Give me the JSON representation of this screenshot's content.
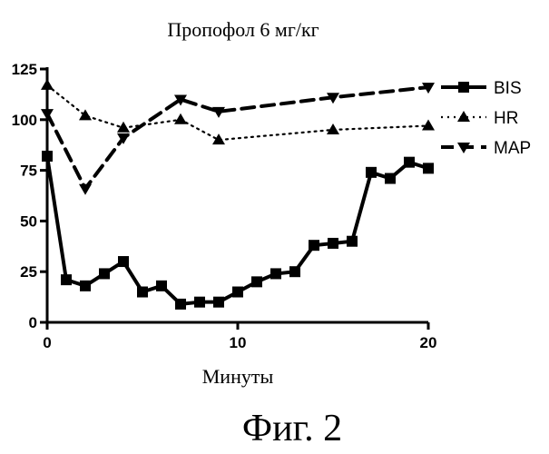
{
  "figure": {
    "caption": "Фиг. 2"
  },
  "chart_data": {
    "type": "line",
    "title": "Пропофол 6 мг/кг",
    "xlabel": "Минуты",
    "ylabel": "",
    "xlim": [
      0,
      20
    ],
    "ylim": [
      0,
      125
    ],
    "xticks": [
      0,
      10,
      20
    ],
    "yticks": [
      0,
      25,
      50,
      75,
      100,
      125
    ],
    "legend_position": "right",
    "grid": false,
    "series": [
      {
        "name": "BIS",
        "line_style": "solid",
        "marker": "square",
        "color": "#000000",
        "x": [
          0,
          1,
          2,
          3,
          4,
          5,
          6,
          7,
          8,
          9,
          10,
          11,
          12,
          13,
          14,
          15,
          16,
          17,
          18,
          19,
          20
        ],
        "y": [
          82,
          21,
          18,
          24,
          30,
          15,
          18,
          9,
          10,
          10,
          15,
          20,
          24,
          25,
          38,
          39,
          40,
          74,
          71,
          79,
          76
        ]
      },
      {
        "name": "HR",
        "line_style": "dotted",
        "marker": "triangle-up",
        "color": "#000000",
        "x": [
          0,
          2,
          4,
          7,
          9,
          15,
          20
        ],
        "y": [
          117,
          102,
          96,
          100,
          90,
          95,
          97
        ]
      },
      {
        "name": "MAP",
        "line_style": "dashed",
        "marker": "triangle-down",
        "color": "#000000",
        "x": [
          0,
          2,
          4,
          7,
          9,
          15,
          20
        ],
        "y": [
          103,
          66,
          91,
          110,
          104,
          111,
          116
        ]
      }
    ]
  }
}
